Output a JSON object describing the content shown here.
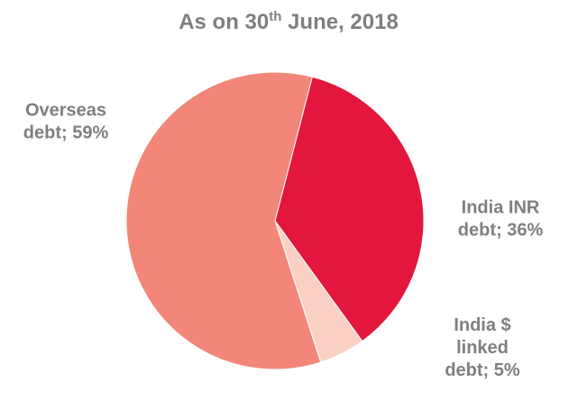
{
  "chart_data": {
    "type": "pie",
    "title": {
      "main": "As on 30",
      "superscript": "th",
      "rest": " June, 2018"
    },
    "slices": [
      {
        "name": "India INR debt",
        "value": 36,
        "label_lines": [
          "India INR",
          "debt; 36%"
        ],
        "color": "#e3173e"
      },
      {
        "name": "India $ linked debt",
        "value": 5,
        "label_lines": [
          "India $",
          "linked",
          "debt; 5%"
        ],
        "color": "#fad0c5"
      },
      {
        "name": "Overseas debt",
        "value": 59,
        "label_lines": [
          "Overseas",
          "debt; 59%"
        ],
        "color": "#f28779"
      }
    ],
    "legend": "none"
  }
}
